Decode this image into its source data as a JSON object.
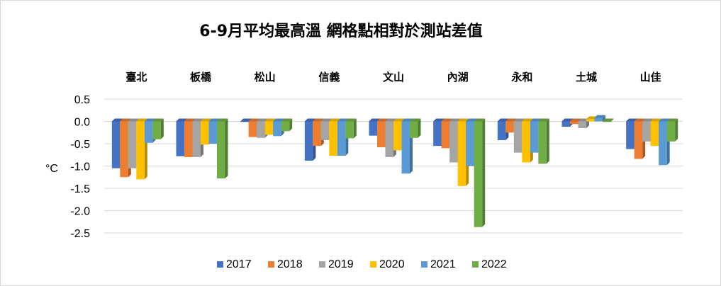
{
  "chart_data": {
    "type": "bar",
    "title": "6-9月平均最高溫 網格點相對於測站差值",
    "ylabel": "°C",
    "xlabel": "",
    "ylim": [
      -2.5,
      0.5
    ],
    "yticks": [
      "0.5",
      "0.0",
      "-0.5",
      "-1.0",
      "-1.5",
      "-2.0",
      "-2.5"
    ],
    "categories": [
      "臺北",
      "板橋",
      "松山",
      "信義",
      "文山",
      "內湖",
      "永和",
      "土城",
      "山佳"
    ],
    "grid": true,
    "legend_position": "bottom",
    "series": [
      {
        "name": "2017",
        "color": "#4472C4",
        "values": [
          -1.05,
          -0.78,
          0.0,
          -0.88,
          -0.32,
          -0.55,
          -0.42,
          -0.12,
          -0.62
        ]
      },
      {
        "name": "2018",
        "color": "#ED7D31",
        "values": [
          -1.25,
          -0.8,
          -0.35,
          -0.55,
          -0.58,
          -0.6,
          -0.25,
          -0.06,
          -0.84
        ]
      },
      {
        "name": "2019",
        "color": "#A5A5A5",
        "values": [
          -1.05,
          -0.8,
          -0.37,
          -0.42,
          -0.8,
          -0.92,
          -0.7,
          -0.15,
          -0.45
        ]
      },
      {
        "name": "2020",
        "color": "#FFC000",
        "values": [
          -1.3,
          -0.52,
          -0.3,
          -0.77,
          -0.65,
          -1.45,
          -0.92,
          0.05,
          -0.55
        ]
      },
      {
        "name": "2021",
        "color": "#5B9BD5",
        "values": [
          -0.48,
          -0.5,
          -0.33,
          -0.77,
          -1.17,
          -1.0,
          -0.7,
          0.08,
          -0.98
        ]
      },
      {
        "name": "2022",
        "color": "#70AD47",
        "values": [
          -0.4,
          -1.28,
          -0.22,
          -0.38,
          -0.37,
          -2.37,
          -0.95,
          0.0,
          -0.45
        ]
      }
    ]
  }
}
